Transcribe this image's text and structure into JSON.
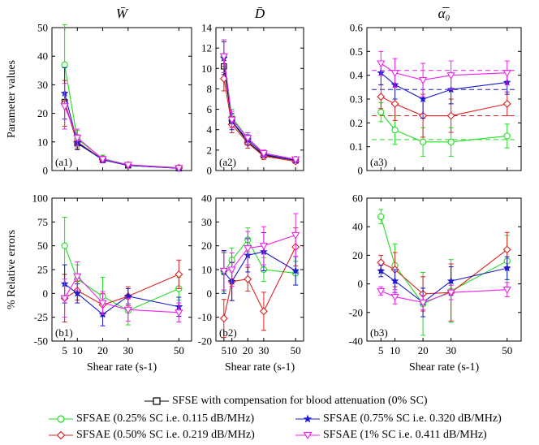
{
  "x_categories": [
    5,
    10,
    20,
    30,
    50
  ],
  "xlabel": "Shear rate (s-1)",
  "series_styles": [
    {
      "key": "sfse",
      "color": "#000000",
      "marker": "square"
    },
    {
      "key": "sc025",
      "color": "#22dd22",
      "marker": "circle"
    },
    {
      "key": "sc050",
      "color": "#dd2222",
      "marker": "diamond"
    },
    {
      "key": "sc075",
      "color": "#1a1acc",
      "marker": "star"
    },
    {
      "key": "sc100",
      "color": "#ee22ee",
      "marker": "triangle"
    }
  ],
  "legend": {
    "sfse": "SFSE with compensation for blood attenuation (0% SC)",
    "sc025": "SFSAE (0.25% SC i.e. 0.115 dB/MHz)",
    "sc050": "SFSAE (0.50% SC i.e. 0.219 dB/MHz)",
    "sc075": "SFSAE (0.75% SC i.e. 0.320 dB/MHz)",
    "sc100": "SFSAE (1% SC i.e. 0.411 dB/MHz)"
  },
  "chart_data": [
    {
      "id": "a1",
      "type": "line",
      "panel_label": "(a1)",
      "title": "W̄",
      "ylabel": "Parameter values",
      "ylim": [
        0,
        50
      ],
      "yticks": [
        0,
        10,
        20,
        30,
        40,
        50
      ],
      "x": [
        5,
        10,
        20,
        30,
        50
      ],
      "series": [
        {
          "key": "sfse",
          "values": [
            24,
            9.5,
            3.8,
            1.8,
            0.8
          ],
          "err": [
            0,
            0,
            0,
            0,
            0
          ]
        },
        {
          "key": "sc025",
          "values": [
            37,
            11,
            4.2,
            2.0,
            1.0
          ],
          "err": [
            14,
            3,
            1.2,
            0.5,
            0.3
          ]
        },
        {
          "key": "sc050",
          "values": [
            23.5,
            10,
            3.9,
            1.9,
            0.9
          ],
          "err": [
            8,
            2.5,
            1.0,
            0.5,
            0.3
          ]
        },
        {
          "key": "sc075",
          "values": [
            27,
            9.8,
            3.7,
            1.8,
            0.8
          ],
          "err": [
            9,
            2.5,
            1.0,
            0.5,
            0.3
          ]
        },
        {
          "key": "sc100",
          "values": [
            22.5,
            11.5,
            4.0,
            2.0,
            0.9
          ],
          "err": [
            8,
            3,
            1.0,
            0.5,
            0.3
          ]
        }
      ]
    },
    {
      "id": "a2",
      "type": "line",
      "panel_label": "(a2)",
      "title": "D̄",
      "ylabel": "",
      "ylim": [
        0,
        14
      ],
      "yticks": [
        0,
        2,
        4,
        6,
        8,
        10,
        12,
        14
      ],
      "x": [
        5,
        10,
        20,
        30,
        50
      ],
      "series": [
        {
          "key": "sfse",
          "values": [
            10.2,
            4.8,
            2.8,
            1.5,
            1.0
          ],
          "err": [
            0,
            0,
            0,
            0,
            0
          ]
        },
        {
          "key": "sc025",
          "values": [
            11.2,
            5.2,
            3.2,
            1.7,
            1.1
          ],
          "err": [
            1.6,
            0.8,
            0.5,
            0.3,
            0.2
          ]
        },
        {
          "key": "sc050",
          "values": [
            9.0,
            4.5,
            2.7,
            1.4,
            0.9
          ],
          "err": [
            1.2,
            0.8,
            0.5,
            0.3,
            0.2
          ]
        },
        {
          "key": "sc075",
          "values": [
            11.0,
            4.8,
            3.0,
            1.6,
            1.0
          ],
          "err": [
            1.6,
            0.8,
            0.5,
            0.3,
            0.2
          ]
        },
        {
          "key": "sc100",
          "values": [
            11.2,
            5.0,
            3.2,
            1.7,
            1.1
          ],
          "err": [
            1.6,
            0.8,
            0.5,
            0.3,
            0.2
          ]
        }
      ]
    },
    {
      "id": "a3",
      "type": "line",
      "panel_label": "(a3)",
      "title": "α̅₀",
      "ylabel": "",
      "ylim": [
        0,
        0.6
      ],
      "yticks": [
        0,
        0.1,
        0.2,
        0.3,
        0.4,
        0.5,
        0.6
      ],
      "x": [
        5,
        10,
        20,
        30,
        50
      ],
      "reference_dashed": [
        {
          "key": "sc025",
          "value": 0.13
        },
        {
          "key": "sc050",
          "value": 0.23
        },
        {
          "key": "sc075",
          "value": 0.34
        },
        {
          "key": "sc100",
          "value": 0.42
        }
      ],
      "series": [
        {
          "key": "sc025",
          "values": [
            0.245,
            0.17,
            0.12,
            0.12,
            0.145
          ],
          "err": [
            0.04,
            0.06,
            0.06,
            0.06,
            0.05
          ]
        },
        {
          "key": "sc050",
          "values": [
            0.31,
            0.28,
            0.23,
            0.23,
            0.28
          ],
          "err": [
            0.05,
            0.07,
            0.09,
            0.07,
            0.05
          ]
        },
        {
          "key": "sc075",
          "values": [
            0.41,
            0.36,
            0.3,
            0.34,
            0.37
          ],
          "err": [
            0.05,
            0.06,
            0.08,
            0.06,
            0.05
          ]
        },
        {
          "key": "sc100",
          "values": [
            0.45,
            0.41,
            0.38,
            0.4,
            0.41
          ],
          "err": [
            0.05,
            0.06,
            0.07,
            0.06,
            0.05
          ]
        }
      ]
    },
    {
      "id": "b1",
      "type": "line",
      "panel_label": "(b1)",
      "title": "",
      "ylabel": "% Relative errors",
      "ylim": [
        -50,
        100
      ],
      "yticks": [
        -50,
        -25,
        0,
        25,
        50,
        75,
        100
      ],
      "x": [
        5,
        10,
        20,
        30,
        50
      ],
      "series": [
        {
          "key": "sc025",
          "values": [
            50,
            15,
            -3,
            -18,
            5
          ],
          "err": [
            30,
            15,
            20,
            15,
            12
          ]
        },
        {
          "key": "sc050",
          "values": [
            -5,
            3,
            -12,
            -3,
            20
          ],
          "err": [
            25,
            10,
            12,
            10,
            15
          ]
        },
        {
          "key": "sc075",
          "values": [
            10,
            0,
            -22,
            -3,
            -14
          ],
          "err": [
            20,
            10,
            12,
            8,
            10
          ]
        },
        {
          "key": "sc100",
          "values": [
            -5,
            18,
            -10,
            -17,
            -20
          ],
          "err": [
            20,
            15,
            12,
            12,
            10
          ]
        }
      ]
    },
    {
      "id": "b2",
      "type": "line",
      "panel_label": "(b2)",
      "title": "",
      "ylabel": "",
      "ylim": [
        -20,
        40
      ],
      "yticks": [
        -20,
        -10,
        0,
        10,
        20,
        30,
        40
      ],
      "x": [
        5,
        10,
        20,
        30,
        50
      ],
      "series": [
        {
          "key": "sc025",
          "values": [
            9,
            14,
            22.5,
            10,
            8.5
          ],
          "err": [
            8,
            5,
            5,
            5,
            5
          ]
        },
        {
          "key": "sc050",
          "values": [
            -10.5,
            5,
            6,
            -7.5,
            19.5
          ],
          "err": [
            8,
            8,
            5,
            8,
            8
          ]
        },
        {
          "key": "sc075",
          "values": [
            9,
            5,
            16,
            17.5,
            9.5
          ],
          "err": [
            9,
            8,
            7,
            8,
            6
          ]
        },
        {
          "key": "sc100",
          "values": [
            9.5,
            10,
            19,
            20,
            24.5
          ],
          "err": [
            8,
            7,
            7,
            8,
            9
          ]
        }
      ]
    },
    {
      "id": "b3",
      "type": "line",
      "panel_label": "(b3)",
      "title": "",
      "ylabel": "",
      "ylim": [
        -40,
        60
      ],
      "yticks": [
        -40,
        -20,
        0,
        20,
        40,
        60
      ],
      "x": [
        5,
        10,
        20,
        30,
        50
      ],
      "series": [
        {
          "key": "sc025",
          "values": [
            47,
            13,
            -14,
            -5,
            16
          ],
          "err": [
            5,
            15,
            22,
            22,
            18
          ]
        },
        {
          "key": "sc050",
          "values": [
            15,
            10,
            -7,
            -6,
            24
          ],
          "err": [
            5,
            12,
            12,
            20,
            12
          ]
        },
        {
          "key": "sc075",
          "values": [
            9,
            2,
            -13,
            2,
            11
          ],
          "err": [
            4,
            8,
            10,
            10,
            8
          ]
        },
        {
          "key": "sc100",
          "values": [
            -5,
            -9,
            -13,
            -6,
            -4
          ],
          "err": [
            3,
            5,
            5,
            5,
            5
          ]
        }
      ]
    }
  ]
}
